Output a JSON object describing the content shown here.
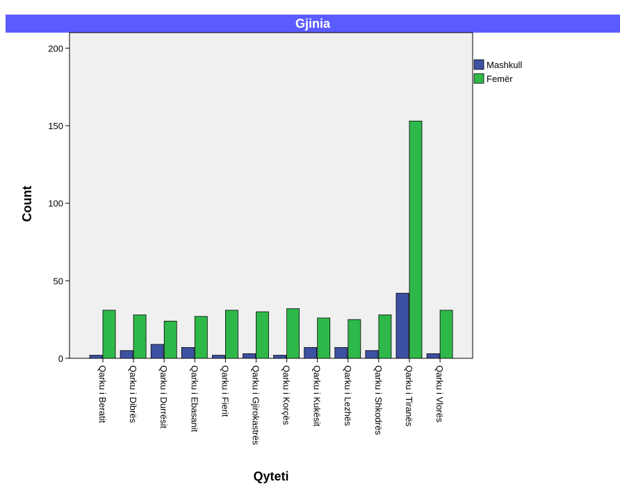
{
  "chart_data": {
    "type": "bar",
    "title": "Gjinia",
    "xlabel": "Qyteti",
    "ylabel": "Count",
    "categories": [
      "Qarku i Beratit",
      "Qarku i Dibrës",
      "Qarku i Durrësit",
      "Qarku i Ebasanit",
      "Qarku i Fierit",
      "Qarku i Gjirokastrës",
      "Qarku i Korçës",
      "Qarku i Kukësit",
      "Qarku i Lezhës",
      "Qarku i Shkodrës",
      "Qarku i Tiranës",
      "Qarku i Vlorës"
    ],
    "series": [
      {
        "name": "Mashkull",
        "color": "#3d51a3",
        "values": [
          2,
          5,
          9,
          7,
          2,
          3,
          2,
          7,
          7,
          5,
          42,
          3
        ]
      },
      {
        "name": "Femër",
        "color": "#2fb84a",
        "values": [
          31,
          28,
          24,
          27,
          31,
          30,
          32,
          26,
          25,
          28,
          153,
          31
        ]
      }
    ],
    "ylim": [
      0,
      210
    ],
    "yticks": [
      0,
      50,
      100,
      150,
      200
    ],
    "grid": false,
    "legend": "right",
    "plot_background": "#f0f0f0",
    "title_background": "#5b5cff"
  }
}
